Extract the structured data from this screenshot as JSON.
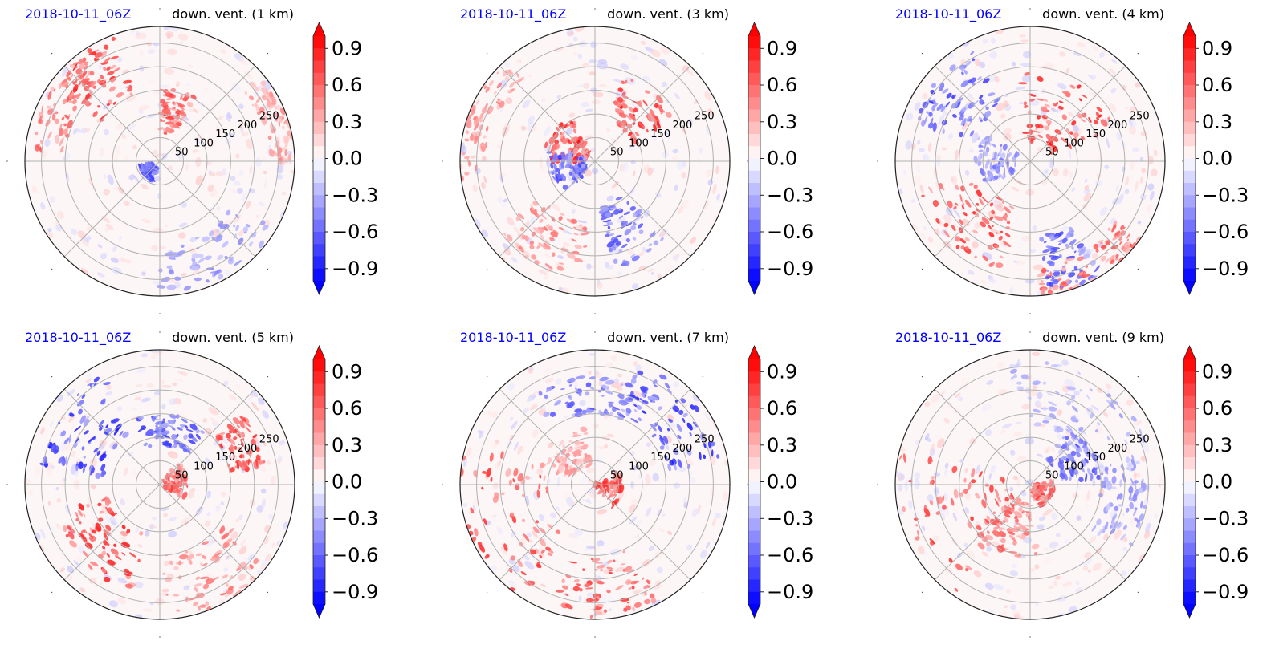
{
  "colors": {
    "positive": "#ff0000",
    "negative": "#0000ff",
    "zero": "#ffffff",
    "date_text": "#0000ff",
    "grid": "#b0b0b0"
  },
  "colorbar": {
    "ticks": [
      "0.9",
      "0.6",
      "0.3",
      "0.0",
      "−0.3",
      "−0.6",
      "−0.9"
    ],
    "tick_values": [
      0.9,
      0.6,
      0.3,
      0.0,
      -0.3,
      -0.6,
      -0.9
    ],
    "range": [
      -1.0,
      1.0
    ],
    "extend": "both"
  },
  "chart_data": [
    {
      "type": "heatmap",
      "projection": "polar",
      "date": "2018-10-11_06Z",
      "title": "down. vent. (1 km)",
      "radial_ticks": [
        "50",
        "100",
        "150",
        "200",
        "250"
      ],
      "radial_values": [
        50,
        100,
        150,
        200,
        250
      ],
      "rmax": 285,
      "grid": true,
      "features": [
        {
          "angle_deg": 128,
          "r_inner": 150,
          "r_outer": 280,
          "sign": 1,
          "intensity": 0.95,
          "spread_deg": 18
        },
        {
          "angle_deg": 150,
          "r_inner": 200,
          "r_outer": 275,
          "sign": 1,
          "intensity": 0.7,
          "spread_deg": 25
        },
        {
          "angle_deg": 75,
          "r_inner": 60,
          "r_outer": 160,
          "sign": 1,
          "intensity": 0.8,
          "spread_deg": 14
        },
        {
          "angle_deg": 220,
          "r_inner": 15,
          "r_outer": 45,
          "sign": -1,
          "intensity": 0.8,
          "spread_deg": 30
        },
        {
          "angle_deg": 300,
          "r_inner": 180,
          "r_outer": 280,
          "sign": -1,
          "intensity": 0.5,
          "spread_deg": 30
        },
        {
          "angle_deg": 20,
          "r_inner": 230,
          "r_outer": 285,
          "sign": 1,
          "intensity": 0.5,
          "spread_deg": 20
        }
      ]
    },
    {
      "type": "heatmap",
      "projection": "polar",
      "date": "2018-10-11_06Z",
      "title": "down. vent. (3 km)",
      "radial_ticks": [
        "50",
        "100",
        "150",
        "200",
        "250"
      ],
      "radial_values": [
        50,
        100,
        150,
        200,
        250
      ],
      "rmax": 285,
      "grid": true,
      "features": [
        {
          "angle_deg": 50,
          "r_inner": 90,
          "r_outer": 190,
          "sign": 1,
          "intensity": 0.95,
          "spread_deg": 22
        },
        {
          "angle_deg": 150,
          "r_inner": 20,
          "r_outer": 110,
          "sign": 1,
          "intensity": 0.95,
          "spread_deg": 30
        },
        {
          "angle_deg": 195,
          "r_inner": 20,
          "r_outer": 100,
          "sign": -1,
          "intensity": 0.8,
          "spread_deg": 30
        },
        {
          "angle_deg": 295,
          "r_inner": 90,
          "r_outer": 230,
          "sign": -1,
          "intensity": 0.75,
          "spread_deg": 16
        },
        {
          "angle_deg": 240,
          "r_inner": 130,
          "r_outer": 250,
          "sign": 1,
          "intensity": 0.6,
          "spread_deg": 25
        },
        {
          "angle_deg": 160,
          "r_inner": 230,
          "r_outer": 285,
          "sign": 1,
          "intensity": 0.55,
          "spread_deg": 30
        }
      ]
    },
    {
      "type": "heatmap",
      "projection": "polar",
      "date": "2018-10-11_06Z",
      "title": "down. vent. (4 km)",
      "radial_ticks": [
        "50",
        "100",
        "150",
        "200",
        "250"
      ],
      "radial_values": [
        50,
        100,
        150,
        200,
        250
      ],
      "rmax": 285,
      "grid": true,
      "features": [
        {
          "angle_deg": 60,
          "r_inner": 40,
          "r_outer": 190,
          "sign": 1,
          "intensity": 0.95,
          "spread_deg": 40
        },
        {
          "angle_deg": 140,
          "r_inner": 130,
          "r_outer": 260,
          "sign": -1,
          "intensity": 0.85,
          "spread_deg": 22
        },
        {
          "angle_deg": 225,
          "r_inner": 100,
          "r_outer": 240,
          "sign": 1,
          "intensity": 0.9,
          "spread_deg": 30
        },
        {
          "angle_deg": 290,
          "r_inner": 160,
          "r_outer": 280,
          "sign": -1,
          "intensity": 0.8,
          "spread_deg": 12
        },
        {
          "angle_deg": 300,
          "r_inner": 220,
          "r_outer": 285,
          "sign": 1,
          "intensity": 0.7,
          "spread_deg": 25
        },
        {
          "angle_deg": 180,
          "r_inner": 30,
          "r_outer": 120,
          "sign": -1,
          "intensity": 0.6,
          "spread_deg": 30
        }
      ]
    },
    {
      "type": "heatmap",
      "projection": "polar",
      "date": "2018-10-11_06Z",
      "title": "down. vent. (5 km)",
      "radial_ticks": [
        "50",
        "100",
        "150",
        "200",
        "250"
      ],
      "radial_values": [
        50,
        100,
        150,
        200,
        250
      ],
      "rmax": 285,
      "grid": true,
      "features": [
        {
          "angle_deg": 145,
          "r_inner": 120,
          "r_outer": 260,
          "sign": -1,
          "intensity": 0.95,
          "spread_deg": 28
        },
        {
          "angle_deg": 80,
          "r_inner": 80,
          "r_outer": 150,
          "sign": -1,
          "intensity": 0.85,
          "spread_deg": 30
        },
        {
          "angle_deg": 225,
          "r_inner": 110,
          "r_outer": 230,
          "sign": 1,
          "intensity": 0.95,
          "spread_deg": 30
        },
        {
          "angle_deg": 25,
          "r_inner": 150,
          "r_outer": 230,
          "sign": 1,
          "intensity": 0.9,
          "spread_deg": 15
        },
        {
          "angle_deg": 300,
          "r_inner": 150,
          "r_outer": 285,
          "sign": 1,
          "intensity": 0.6,
          "spread_deg": 30
        },
        {
          "angle_deg": 10,
          "r_inner": 10,
          "r_outer": 60,
          "sign": 1,
          "intensity": 0.8,
          "spread_deg": 40
        }
      ]
    },
    {
      "type": "heatmap",
      "projection": "polar",
      "date": "2018-10-11_06Z",
      "title": "down. vent. (7 km)",
      "radial_ticks": [
        "50",
        "100",
        "150",
        "200",
        "250"
      ],
      "radial_values": [
        50,
        100,
        150,
        200,
        250
      ],
      "rmax": 285,
      "grid": true,
      "features": [
        {
          "angle_deg": 40,
          "r_inner": 150,
          "r_outer": 270,
          "sign": -1,
          "intensity": 0.95,
          "spread_deg": 30
        },
        {
          "angle_deg": 90,
          "r_inner": 150,
          "r_outer": 230,
          "sign": -1,
          "intensity": 0.7,
          "spread_deg": 35
        },
        {
          "angle_deg": 200,
          "r_inner": 100,
          "r_outer": 285,
          "sign": 1,
          "intensity": 0.85,
          "spread_deg": 40
        },
        {
          "angle_deg": 275,
          "r_inner": 150,
          "r_outer": 280,
          "sign": 1,
          "intensity": 0.85,
          "spread_deg": 25
        },
        {
          "angle_deg": 345,
          "r_inner": 0,
          "r_outer": 60,
          "sign": 1,
          "intensity": 0.9,
          "spread_deg": 40
        },
        {
          "angle_deg": 130,
          "r_inner": 40,
          "r_outer": 120,
          "sign": 1,
          "intensity": 0.5,
          "spread_deg": 30
        }
      ]
    },
    {
      "type": "heatmap",
      "projection": "polar",
      "date": "2018-10-11_06Z",
      "title": "down. vent. (9 km)",
      "radial_ticks": [
        "50",
        "100",
        "150",
        "200",
        "250"
      ],
      "radial_values": [
        50,
        100,
        150,
        200,
        250
      ],
      "rmax": 285,
      "grid": true,
      "features": [
        {
          "angle_deg": 200,
          "r_inner": 40,
          "r_outer": 280,
          "sign": 1,
          "intensity": 0.85,
          "spread_deg": 35
        },
        {
          "angle_deg": 250,
          "r_inner": 40,
          "r_outer": 160,
          "sign": 1,
          "intensity": 0.7,
          "spread_deg": 25
        },
        {
          "angle_deg": 30,
          "r_inner": 60,
          "r_outer": 150,
          "sign": -1,
          "intensity": 0.8,
          "spread_deg": 25
        },
        {
          "angle_deg": 60,
          "r_inner": 120,
          "r_outer": 260,
          "sign": -1,
          "intensity": 0.4,
          "spread_deg": 40
        },
        {
          "angle_deg": 350,
          "r_inner": 150,
          "r_outer": 250,
          "sign": -1,
          "intensity": 0.5,
          "spread_deg": 25
        },
        {
          "angle_deg": 330,
          "r_inner": 10,
          "r_outer": 50,
          "sign": 1,
          "intensity": 0.8,
          "spread_deg": 40
        }
      ]
    }
  ]
}
